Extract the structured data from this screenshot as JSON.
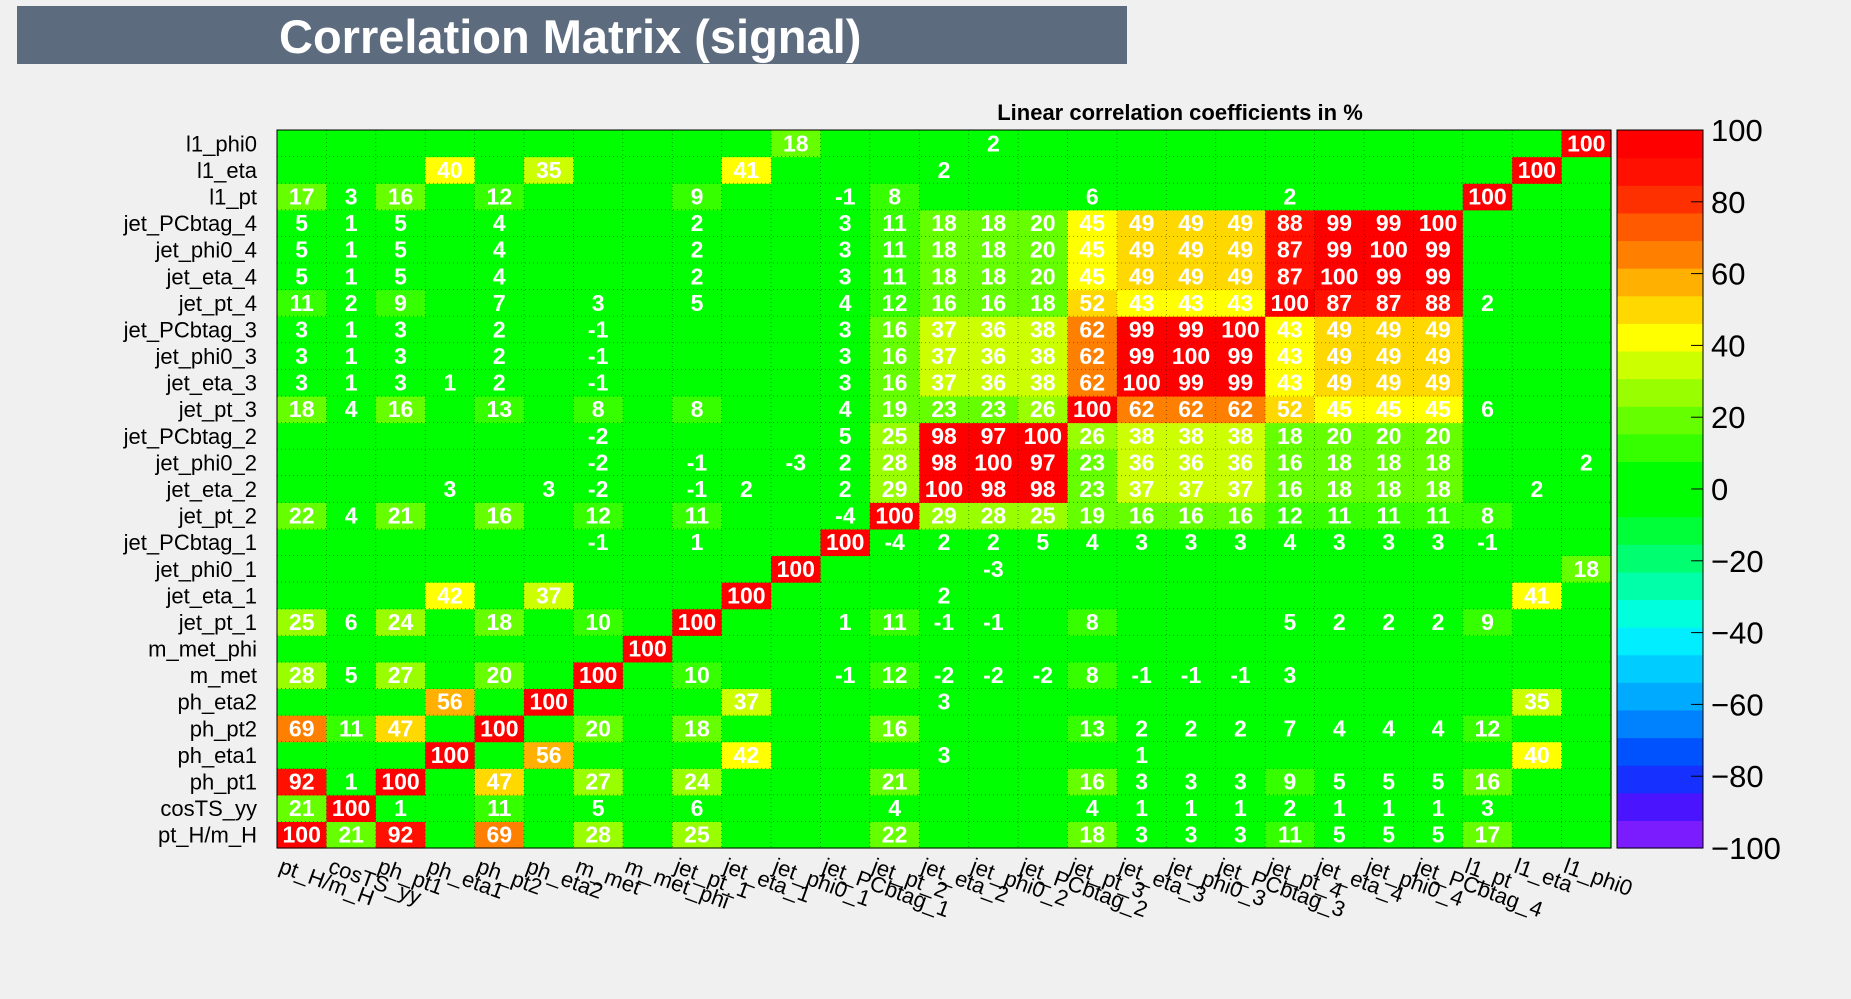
{
  "page_title": "Correlation Matrix (signal)",
  "chart_data": {
    "type": "heatmap",
    "subtitle": "Linear correlation coefficients in %",
    "variables": [
      "pt_H/m_H",
      "cosTS_yy",
      "ph_pt1",
      "ph_eta1",
      "ph_pt2",
      "ph_eta2",
      "m_met",
      "m_met_phi",
      "jet_pt_1",
      "jet_eta_1",
      "jet_phi0_1",
      "jet_PCbtag_1",
      "jet_pt_2",
      "jet_eta_2",
      "jet_phi0_2",
      "jet_PCbtag_2",
      "jet_pt_3",
      "jet_eta_3",
      "jet_phi0_3",
      "jet_PCbtag_3",
      "jet_pt_4",
      "jet_eta_4",
      "jet_phi0_4",
      "jet_PCbtag_4",
      "l1_pt",
      "l1_eta",
      "l1_phi0"
    ],
    "x_labels": [
      "pt_H/m_H",
      "cosTS_yy",
      "ph_pt1",
      "ph_eta1",
      "ph_pt2",
      "ph_eta2",
      "m_met",
      "m_met_phi",
      "jet_pt_1",
      "jet_eta_1",
      "jet_phi0_1",
      "jet_PCbtag_1",
      "jet_pt_2",
      "jet_eta_2",
      "jet_phi0_2",
      "jet_PCbtag_2",
      "jet_pt_3",
      "jet_eta_3",
      "jet_phi0_3",
      "jet_PCbtag_3",
      "jet_pt_4",
      "jet_eta_4",
      "jet_phi0_4",
      "jet_PCbtag_4",
      "l1_pt",
      "l1_eta",
      "l1_phi0"
    ],
    "y_labels_top_to_bottom": [
      "l1_phi0",
      "l1_eta",
      "l1_pt",
      "jet_PCbtag_4",
      "jet_phi0_4",
      "jet_eta_4",
      "jet_pt_4",
      "jet_PCbtag_3",
      "jet_phi0_3",
      "jet_eta_3",
      "jet_pt_3",
      "jet_PCbtag_2",
      "jet_phi0_2",
      "jet_eta_2",
      "jet_pt_2",
      "jet_PCbtag_1",
      "jet_phi0_1",
      "jet_eta_1",
      "jet_pt_1",
      "m_met_phi",
      "m_met",
      "ph_eta2",
      "ph_pt2",
      "ph_eta1",
      "ph_pt1",
      "cosTS_yy",
      "pt_H/m_H"
    ],
    "matrix_rows_bottom_to_top": [
      [
        100,
        21,
        92,
        0,
        69,
        0,
        28,
        0,
        25,
        0,
        0,
        0,
        22,
        0,
        0,
        0,
        18,
        3,
        3,
        3,
        11,
        5,
        5,
        5,
        17,
        0,
        0
      ],
      [
        21,
        100,
        1,
        0,
        11,
        0,
        5,
        0,
        6,
        0,
        0,
        0,
        4,
        0,
        0,
        0,
        4,
        1,
        1,
        1,
        2,
        1,
        1,
        1,
        3,
        0,
        0
      ],
      [
        92,
        1,
        100,
        0,
        47,
        0,
        27,
        0,
        24,
        0,
        0,
        0,
        21,
        0,
        0,
        0,
        16,
        3,
        3,
        3,
        9,
        5,
        5,
        5,
        16,
        0,
        0
      ],
      [
        0,
        0,
        0,
        100,
        0,
        56,
        0,
        0,
        0,
        42,
        0,
        0,
        0,
        3,
        0,
        0,
        0,
        1,
        0,
        0,
        0,
        0,
        0,
        0,
        0,
        40,
        0
      ],
      [
        69,
        11,
        47,
        0,
        100,
        0,
        20,
        0,
        18,
        0,
        0,
        0,
        16,
        0,
        0,
        0,
        13,
        2,
        2,
        2,
        7,
        4,
        4,
        4,
        12,
        0,
        0
      ],
      [
        0,
        0,
        0,
        56,
        0,
        100,
        0,
        0,
        0,
        37,
        0,
        0,
        0,
        3,
        0,
        0,
        0,
        0,
        0,
        0,
        0,
        0,
        0,
        0,
        0,
        35,
        0
      ],
      [
        28,
        5,
        27,
        0,
        20,
        0,
        100,
        0,
        10,
        0,
        0,
        -1,
        12,
        -2,
        -2,
        -2,
        8,
        -1,
        -1,
        -1,
        3,
        0,
        0,
        0,
        0,
        0,
        0
      ],
      [
        0,
        0,
        0,
        0,
        0,
        0,
        0,
        100,
        0,
        0,
        0,
        0,
        0,
        0,
        0,
        0,
        0,
        0,
        0,
        0,
        0,
        0,
        0,
        0,
        0,
        0,
        0
      ],
      [
        25,
        6,
        24,
        0,
        18,
        0,
        10,
        0,
        100,
        0,
        0,
        1,
        11,
        -1,
        -1,
        0,
        8,
        0,
        0,
        0,
        5,
        2,
        2,
        2,
        9,
        0,
        0
      ],
      [
        0,
        0,
        0,
        42,
        0,
        37,
        0,
        0,
        0,
        100,
        0,
        0,
        0,
        2,
        0,
        0,
        0,
        0,
        0,
        0,
        0,
        0,
        0,
        0,
        0,
        41,
        0
      ],
      [
        0,
        0,
        0,
        0,
        0,
        0,
        0,
        0,
        0,
        0,
        100,
        0,
        0,
        0,
        -3,
        0,
        0,
        0,
        0,
        0,
        0,
        0,
        0,
        0,
        0,
        0,
        18
      ],
      [
        0,
        0,
        0,
        0,
        0,
        0,
        -1,
        0,
        1,
        0,
        0,
        100,
        -4,
        2,
        2,
        5,
        4,
        3,
        3,
        3,
        4,
        3,
        3,
        3,
        -1,
        0,
        0
      ],
      [
        22,
        4,
        21,
        0,
        16,
        0,
        12,
        0,
        11,
        0,
        0,
        -4,
        100,
        29,
        28,
        25,
        19,
        16,
        16,
        16,
        12,
        11,
        11,
        11,
        8,
        0,
        0
      ],
      [
        0,
        0,
        0,
        3,
        0,
        3,
        -2,
        0,
        -1,
        2,
        0,
        2,
        29,
        100,
        98,
        98,
        23,
        37,
        37,
        37,
        16,
        18,
        18,
        18,
        0,
        2,
        0
      ],
      [
        0,
        0,
        0,
        0,
        0,
        0,
        -2,
        0,
        -1,
        0,
        -3,
        2,
        28,
        98,
        100,
        97,
        23,
        36,
        36,
        36,
        16,
        18,
        18,
        18,
        0,
        0,
        2
      ],
      [
        0,
        0,
        0,
        0,
        0,
        0,
        -2,
        0,
        0,
        0,
        0,
        5,
        25,
        98,
        97,
        100,
        26,
        38,
        38,
        38,
        18,
        20,
        20,
        20,
        0,
        0,
        0
      ],
      [
        18,
        4,
        16,
        0,
        13,
        0,
        8,
        0,
        8,
        0,
        0,
        4,
        19,
        23,
        23,
        26,
        100,
        62,
        62,
        62,
        52,
        45,
        45,
        45,
        6,
        0,
        0
      ],
      [
        3,
        1,
        3,
        1,
        2,
        0,
        -1,
        0,
        0,
        0,
        0,
        3,
        16,
        37,
        36,
        38,
        62,
        100,
        99,
        99,
        43,
        49,
        49,
        49,
        0,
        0,
        0
      ],
      [
        3,
        1,
        3,
        0,
        2,
        0,
        -1,
        0,
        0,
        0,
        0,
        3,
        16,
        37,
        36,
        38,
        62,
        99,
        100,
        99,
        43,
        49,
        49,
        49,
        0,
        0,
        0
      ],
      [
        3,
        1,
        3,
        0,
        2,
        0,
        -1,
        0,
        0,
        0,
        0,
        3,
        16,
        37,
        36,
        38,
        62,
        99,
        99,
        100,
        43,
        49,
        49,
        49,
        0,
        0,
        0
      ],
      [
        11,
        2,
        9,
        0,
        7,
        0,
        3,
        0,
        5,
        0,
        0,
        4,
        12,
        16,
        16,
        18,
        52,
        43,
        43,
        43,
        100,
        87,
        87,
        88,
        2,
        0,
        0
      ],
      [
        5,
        1,
        5,
        0,
        4,
        0,
        0,
        0,
        2,
        0,
        0,
        3,
        11,
        18,
        18,
        20,
        45,
        49,
        49,
        49,
        87,
        100,
        99,
        99,
        0,
        0,
        0
      ],
      [
        5,
        1,
        5,
        0,
        4,
        0,
        0,
        0,
        2,
        0,
        0,
        3,
        11,
        18,
        18,
        20,
        45,
        49,
        49,
        49,
        87,
        99,
        100,
        99,
        0,
        0,
        0
      ],
      [
        5,
        1,
        5,
        0,
        4,
        0,
        0,
        0,
        2,
        0,
        0,
        3,
        11,
        18,
        18,
        20,
        45,
        49,
        49,
        49,
        88,
        99,
        99,
        100,
        0,
        0,
        0
      ],
      [
        17,
        3,
        16,
        0,
        12,
        0,
        0,
        0,
        9,
        0,
        0,
        -1,
        8,
        0,
        0,
        0,
        6,
        0,
        0,
        0,
        2,
        0,
        0,
        0,
        100,
        0,
        0
      ],
      [
        0,
        0,
        0,
        40,
        0,
        35,
        0,
        0,
        0,
        41,
        0,
        0,
        0,
        2,
        0,
        0,
        0,
        0,
        0,
        0,
        0,
        0,
        0,
        0,
        0,
        100,
        0
      ],
      [
        0,
        0,
        0,
        0,
        0,
        0,
        0,
        0,
        0,
        0,
        18,
        0,
        0,
        0,
        2,
        0,
        0,
        0,
        0,
        0,
        0,
        0,
        0,
        0,
        0,
        0,
        100
      ]
    ],
    "zero_cells_unlabeled": true,
    "zlim": [
      -100,
      100
    ],
    "colorbar_ticks": [
      "100",
      "80",
      "60",
      "40",
      "20",
      "0",
      "−20",
      "−40",
      "−60",
      "−80",
      "−100"
    ],
    "colorbar_palette_bottom_to_top": [
      "#7b1cff",
      "#4a14ff",
      "#1530ff",
      "#0052ff",
      "#0082ff",
      "#00aaff",
      "#00ccff",
      "#00eeff",
      "#00ffdd",
      "#00ffa8",
      "#00ff70",
      "#00ff38",
      "#00ff00",
      "#00ff00",
      "#36ff00",
      "#66ff00",
      "#99ff00",
      "#ccff00",
      "#ffff00",
      "#ffd800",
      "#ffb000",
      "#ff8000",
      "#ff5a00",
      "#ff3000",
      "#ff1000",
      "#ff0000"
    ],
    "grid": true,
    "background_color": "#f0f0f0",
    "title_bar_color": "#5d6b7e"
  }
}
